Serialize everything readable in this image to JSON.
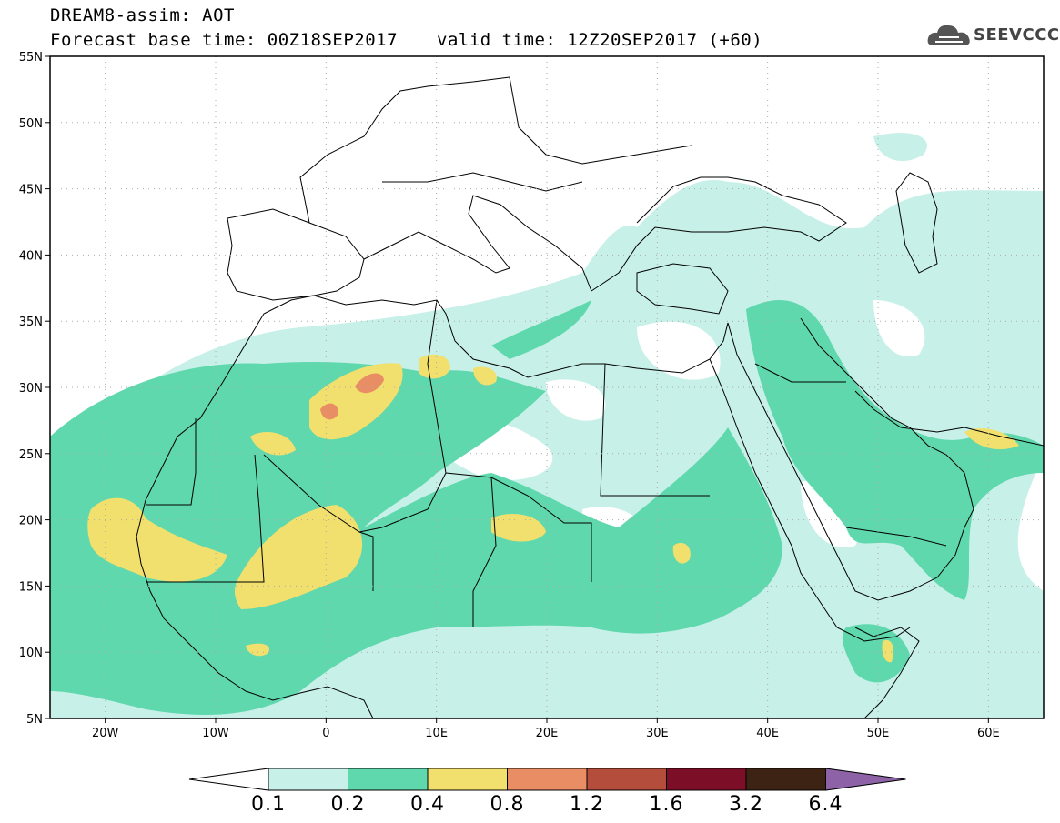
{
  "header": {
    "model_product": "DREAM8-assim: AOT",
    "base_time": "Forecast base time: 00Z18SEP2017",
    "valid_time": "valid time: 12Z20SEP2017 (+60)"
  },
  "logo": {
    "text": "SEEVCCC",
    "icon": "cloud-icon"
  },
  "map": {
    "lat_labels": [
      "55N",
      "50N",
      "45N",
      "40N",
      "35N",
      "30N",
      "25N",
      "20N",
      "15N",
      "10N",
      "5N"
    ],
    "lon_labels": [
      "20W",
      "10W",
      "0",
      "10E",
      "20E",
      "30E",
      "40E",
      "50E",
      "60E"
    ],
    "lat_range": [
      5,
      55
    ],
    "lon_range": [
      -25,
      65
    ],
    "grid": "dotted",
    "colors": {
      "0.1": "#c7f0e8",
      "0.2": "#5fd8ad",
      "0.4": "#f1df6e",
      "0.8": "#e98e64",
      "1.2": "#b44d3c",
      "1.6": "#7d0e28",
      "3.2": "#3d2314",
      "6.4": "#8e62a6"
    }
  },
  "colorbar": {
    "levels": [
      "0.1",
      "0.2",
      "0.4",
      "0.8",
      "1.2",
      "1.6",
      "3.2",
      "6.4"
    ],
    "colors": [
      "#c7f0e8",
      "#5fd8ad",
      "#f1df6e",
      "#e98e64",
      "#b44d3c",
      "#7d0e28",
      "#3d2314",
      "#8e62a6"
    ],
    "under_color": "#ffffff"
  }
}
